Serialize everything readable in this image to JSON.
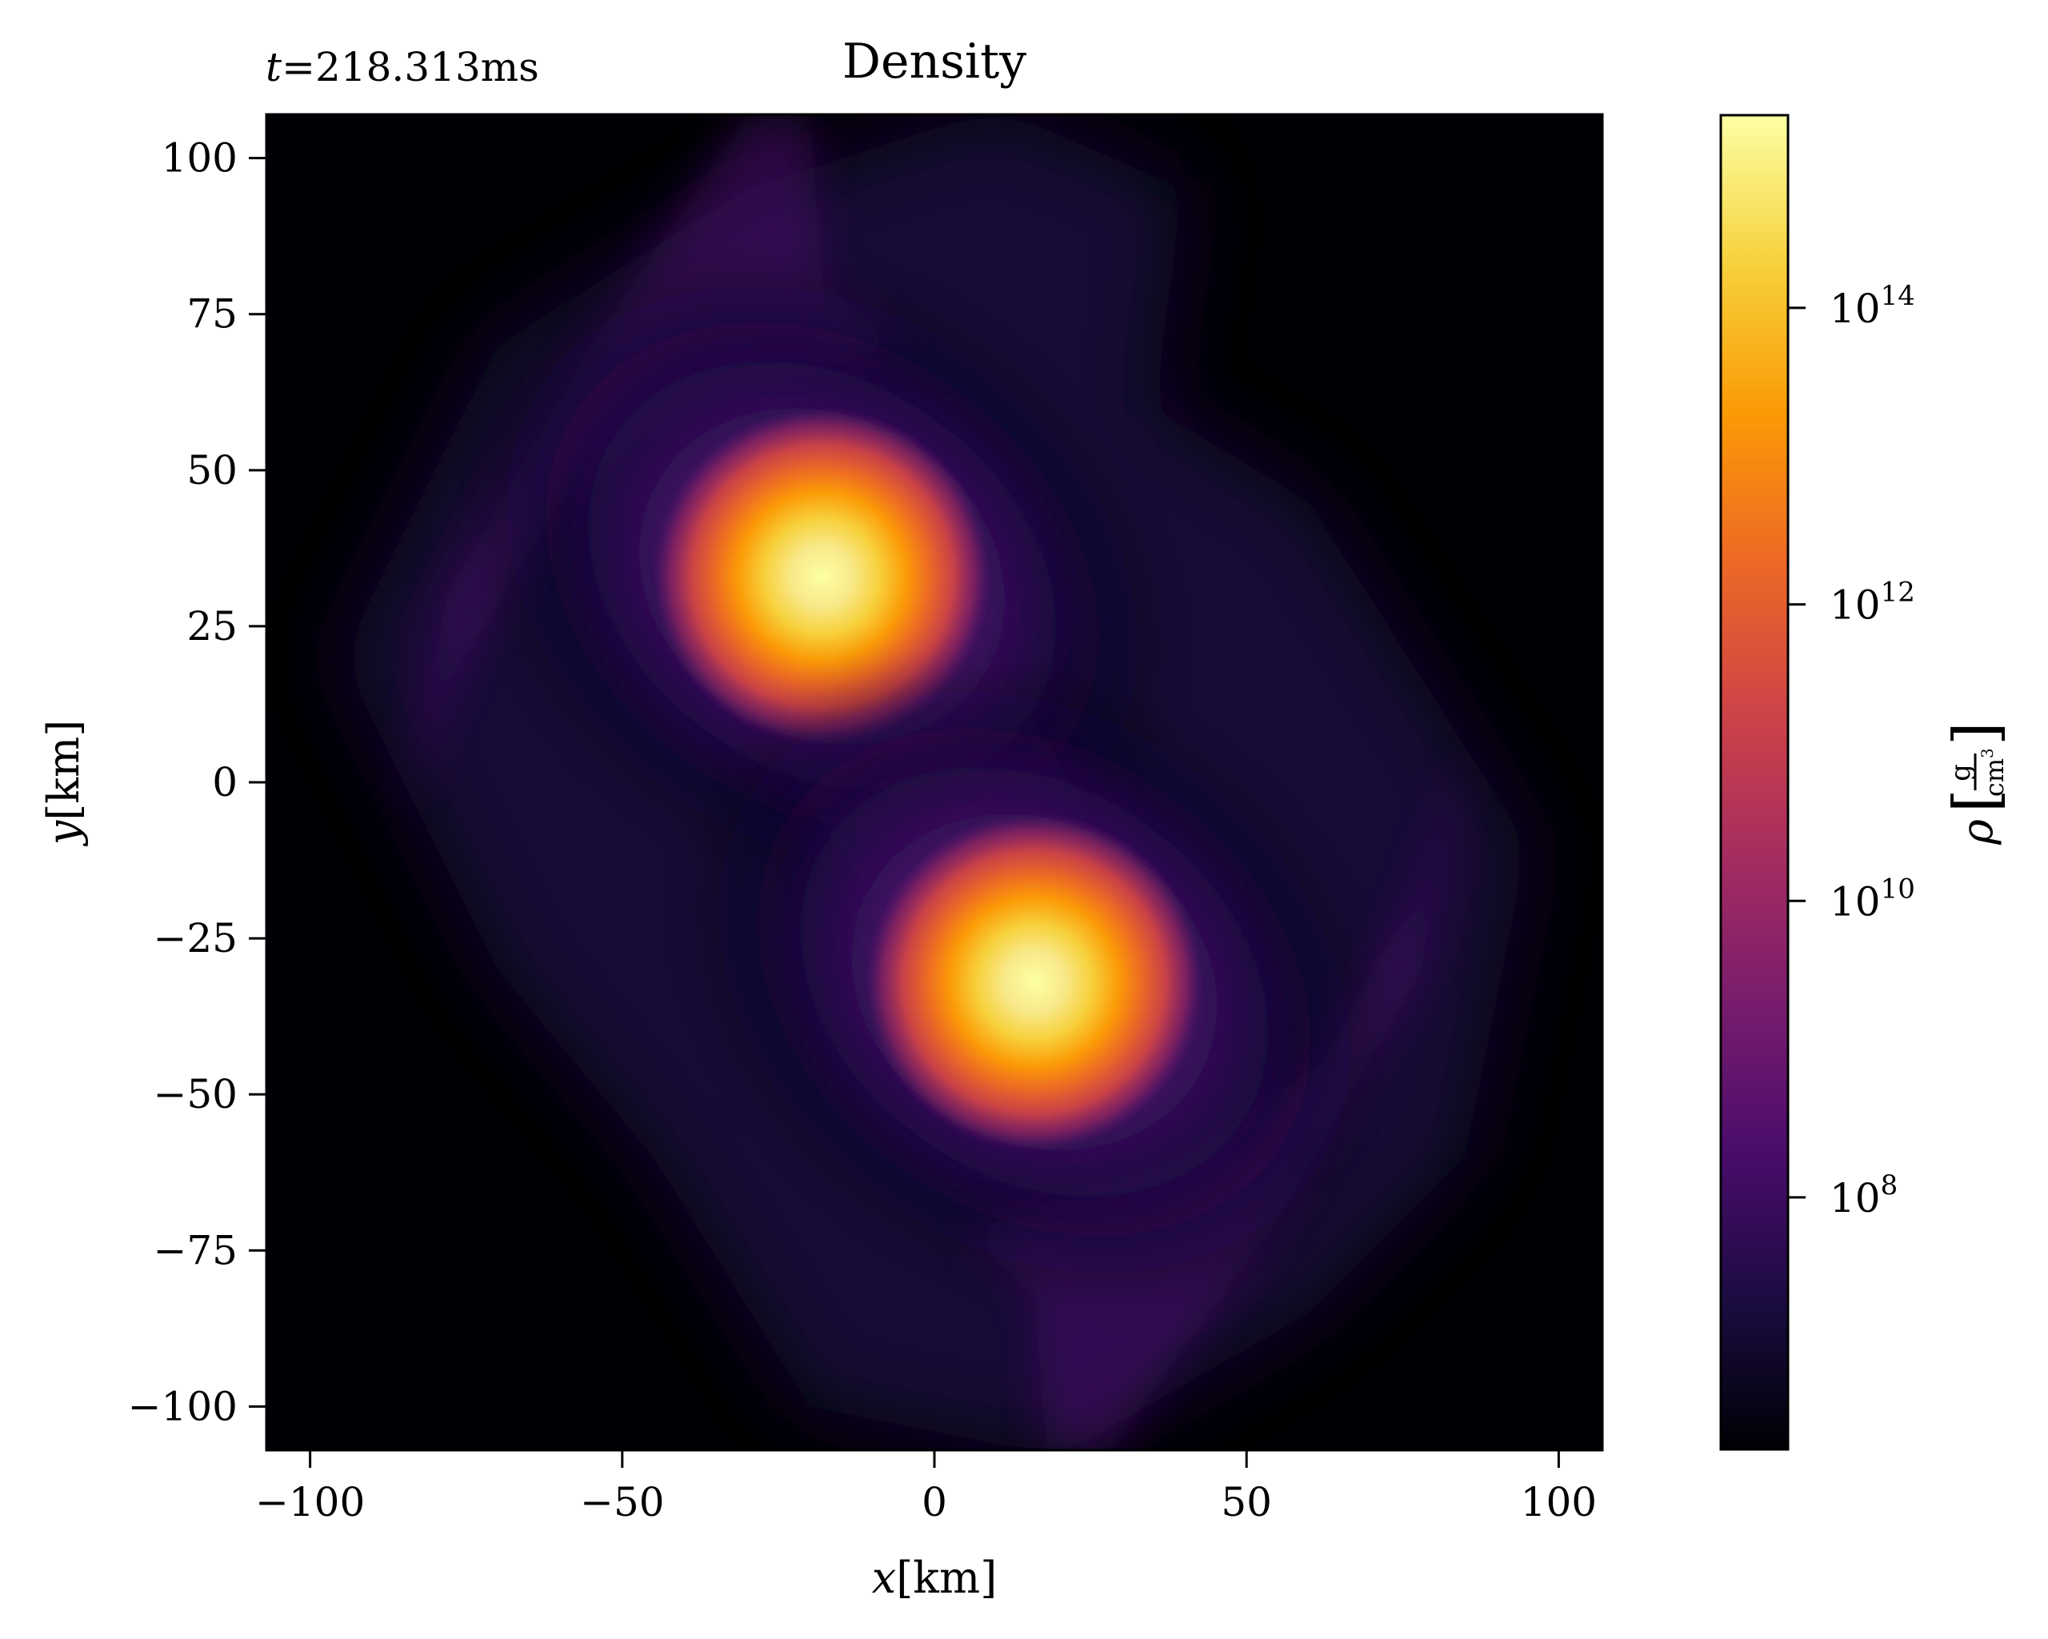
{
  "chart_data": {
    "type": "heatmap",
    "title": "Density",
    "time_label_symbol": "t",
    "time_label_value": "=218.313ms",
    "xlabel_symbol": "x",
    "xlabel_unit": "[km]",
    "ylabel_symbol": "y",
    "ylabel_unit": "[km]",
    "xlim": [
      -107,
      107
    ],
    "ylim": [
      -107,
      107
    ],
    "xticks": [
      -100,
      -50,
      0,
      50,
      100
    ],
    "xtick_labels": [
      "−100",
      "−50",
      "0",
      "50",
      "100"
    ],
    "yticks": [
      100,
      75,
      50,
      25,
      0,
      -25,
      -50,
      -75,
      -100
    ],
    "ytick_labels": [
      "100",
      "75",
      "50",
      "25",
      "0",
      "−25",
      "−50",
      "−75",
      "−100"
    ],
    "colormap": "inferno",
    "colorbar_scale": "log",
    "colorbar": {
      "label_symbol": "ρ",
      "unit_numerator": "g",
      "unit_denominator": "cm",
      "unit_exponent": "3",
      "range_log10": [
        6.3,
        15.3
      ],
      "ticks_log10": [
        8,
        10,
        12,
        14
      ],
      "tick_labels": [
        {
          "base": "10",
          "exp": "8"
        },
        {
          "base": "10",
          "exp": "10"
        },
        {
          "base": "10",
          "exp": "12"
        },
        {
          "base": "10",
          "exp": "14"
        }
      ]
    },
    "features": [
      {
        "name": "upper-left star core",
        "x": -18,
        "y": 33,
        "peak_log10_density": 15
      },
      {
        "name": "lower-right star core",
        "x": 16,
        "y": -32,
        "peak_log10_density": 15
      }
    ],
    "grid": false
  },
  "colors": {
    "inferno": [
      "#000004",
      "#1b0c41",
      "#4a0c6b",
      "#781c6d",
      "#a52c60",
      "#cf4446",
      "#ed6925",
      "#fb9b06",
      "#f7d13d",
      "#fcffa4"
    ],
    "frame": "#000000"
  }
}
